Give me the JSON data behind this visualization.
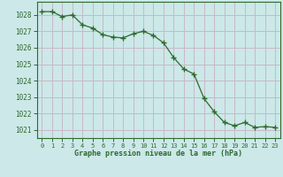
{
  "x": [
    0,
    1,
    2,
    3,
    4,
    5,
    6,
    7,
    8,
    9,
    10,
    11,
    12,
    13,
    14,
    15,
    16,
    17,
    18,
    19,
    20,
    21,
    22,
    23
  ],
  "y": [
    1028.2,
    1028.2,
    1027.9,
    1028.0,
    1027.4,
    1027.2,
    1026.8,
    1026.65,
    1026.6,
    1026.85,
    1027.0,
    1026.75,
    1026.3,
    1025.4,
    1024.7,
    1024.4,
    1022.9,
    1022.1,
    1021.45,
    1021.25,
    1021.45,
    1021.15,
    1021.2,
    1021.15
  ],
  "line_color": "#2d6a2d",
  "marker_color": "#2d6a2d",
  "bg_color": "#cce8e8",
  "grid_color_major": "#c8b8c8",
  "grid_color_minor": "#c8b8c8",
  "xlabel": "Graphe pression niveau de la mer (hPa)",
  "xlabel_color": "#2d6a2d",
  "tick_color": "#2d6a2d",
  "ylim": [
    1020.5,
    1028.8
  ],
  "yticks": [
    1021,
    1022,
    1023,
    1024,
    1025,
    1026,
    1027,
    1028
  ],
  "xlim": [
    -0.5,
    23.5
  ],
  "xticks": [
    0,
    1,
    2,
    3,
    4,
    5,
    6,
    7,
    8,
    9,
    10,
    11,
    12,
    13,
    14,
    15,
    16,
    17,
    18,
    19,
    20,
    21,
    22,
    23
  ]
}
